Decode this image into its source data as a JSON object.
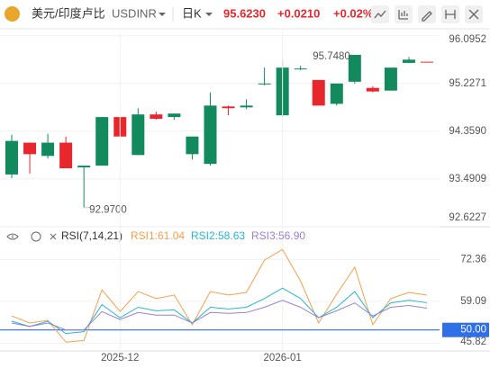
{
  "header": {
    "title": "美元/印度卢比",
    "symbol": "USDINR",
    "period": "日K",
    "price": "95.6230",
    "change": "+0.0210",
    "change_pct": "+0.02%"
  },
  "chart_data": [
    {
      "type": "candlestick",
      "up_color": "#e8272c",
      "down_color": "#138a5e",
      "open": [
        94.182,
        93.941,
        94.15,
        93.684,
        93.732,
        94.616,
        94.262,
        94.664,
        94.584,
        94.68,
        94.262,
        94.825,
        94.777,
        94.825,
        95.227,
        95.516,
        95.5,
        94.825,
        95.227,
        95.748,
        95.082,
        95.516,
        95.661,
        95.623
      ],
      "high": [
        94.295,
        94.15,
        94.311,
        94.262,
        93.732,
        94.616,
        94.616,
        94.777,
        94.713,
        94.68,
        94.262,
        95.066,
        94.825,
        94.938,
        95.516,
        95.645,
        95.549,
        95.291,
        95.227,
        95.748,
        95.179,
        95.516,
        95.709,
        95.623
      ],
      "low": [
        93.507,
        93.587,
        93.861,
        93.684,
        92.97,
        93.732,
        94.262,
        93.925,
        94.568,
        94.568,
        93.844,
        93.732,
        94.648,
        94.761,
        95.195,
        94.616,
        95.468,
        94.825,
        94.825,
        95.227,
        95.066,
        95.098,
        95.602,
        95.623
      ],
      "close": [
        93.571,
        94.15,
        93.909,
        94.15,
        93.7,
        93.732,
        94.616,
        93.925,
        94.664,
        94.616,
        93.941,
        93.764,
        94.809,
        94.793,
        95.211,
        94.648,
        95.484,
        95.291,
        94.857,
        95.259,
        95.147,
        95.098,
        95.602,
        95.623
      ],
      "ylim": [
        92.62,
        96.19
      ],
      "yticks": [
        96.0952,
        95.2271,
        {
          "value": 94.359,
          "label": "94.3590"
        },
        93.4909,
        92.6227
      ],
      "annotations": [
        {
          "value": 95.748,
          "label": "95.7480"
        },
        {
          "value": 92.97,
          "label": "92.9700"
        }
      ]
    },
    {
      "type": "line",
      "title": "RSI(7,14,21)",
      "categories": [
        null,
        null,
        null,
        null,
        null,
        null,
        "2025-12",
        null,
        null,
        null,
        null,
        null,
        null,
        null,
        null,
        "2026-01",
        null,
        null,
        null,
        null,
        null,
        null,
        null,
        null
      ],
      "series": [
        {
          "name": "RSI1:61.04",
          "color": "#f5a04a",
          "values": [
            54.42,
            52.21,
            53.04,
            46.13,
            46.68,
            62.72,
            55.81,
            62.16,
            59.95,
            61.06,
            51.66,
            62.16,
            61.06,
            61.89,
            72.12,
            75.5,
            65.48,
            52.21,
            61.34,
            69.91,
            51.66,
            59.95,
            61.89,
            61.04
          ]
        },
        {
          "name": "RSI2:58.63",
          "color": "#27b6d0",
          "values": [
            52.76,
            51.11,
            52.76,
            48.89,
            49.45,
            58.02,
            53.87,
            57.19,
            56.08,
            56.36,
            52.21,
            57.19,
            56.64,
            57.19,
            59.95,
            63.27,
            59.95,
            53.87,
            57.19,
            62.16,
            53.87,
            58.57,
            59.4,
            58.63
          ]
        },
        {
          "name": "RSI3:56.90",
          "color": "#9c7fce",
          "values": [
            52.21,
            51.11,
            52.21,
            50,
            50,
            55.81,
            53.32,
            55.53,
            54.7,
            54.7,
            52.21,
            55.53,
            55.25,
            55.53,
            57.19,
            59.4,
            57.19,
            53.87,
            56.08,
            58.57,
            54.42,
            57.19,
            57.74,
            56.9
          ]
        }
      ],
      "ylim": [
        43.36,
        77
      ],
      "yticks": [
        72.36,
        59.09,
        45.82
      ],
      "reference_line": {
        "value": 50,
        "label": "50.00",
        "color": "#2f6fe8"
      }
    }
  ]
}
